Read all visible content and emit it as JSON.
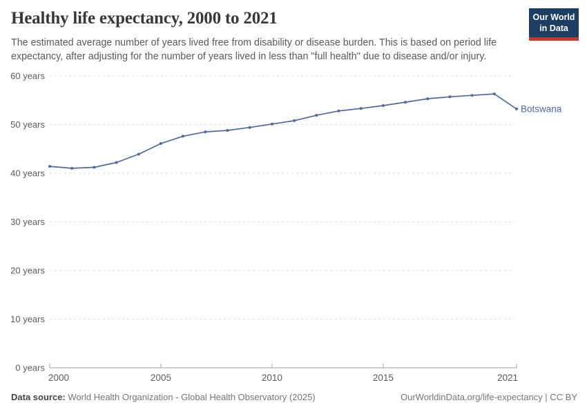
{
  "header": {
    "title": "Healthy life expectancy, 2000 to 2021",
    "subtitle": "The estimated average number of years lived free from disability or disease burden. This is based on period life expectancy, after adjusting for the number of years lived in less than \"full health\" due to disease and/or injury."
  },
  "logo": {
    "line1": "Our World",
    "line2": "in Data",
    "bg_color": "#1d3d63",
    "stripe_color": "#c53a33"
  },
  "chart_data": {
    "type": "line",
    "title": "Healthy life expectancy, 2000 to 2021",
    "x": [
      2000,
      2001,
      2002,
      2003,
      2004,
      2005,
      2006,
      2007,
      2008,
      2009,
      2010,
      2011,
      2012,
      2013,
      2014,
      2015,
      2016,
      2017,
      2018,
      2019,
      2020,
      2021
    ],
    "series": [
      {
        "name": "Botswana",
        "color": "#4a69a5",
        "values": [
          41.4,
          41.0,
          41.2,
          42.2,
          43.9,
          46.1,
          47.6,
          48.5,
          48.8,
          49.4,
          50.1,
          50.8,
          51.9,
          52.8,
          53.3,
          53.9,
          54.6,
          55.3,
          55.7,
          56.0,
          56.3,
          53.2
        ]
      }
    ],
    "xlabel": "",
    "ylabel": "",
    "xlim": [
      2000,
      2021
    ],
    "ylim": [
      0,
      60
    ],
    "x_ticks": [
      2000,
      2005,
      2010,
      2015,
      2021
    ],
    "y_ticks": [
      0,
      10,
      20,
      30,
      40,
      50,
      60
    ],
    "y_tick_suffix": " years",
    "grid": "horizontal-dashed",
    "legend_position": "end-of-line-label",
    "grid_color": "#dcdcdc",
    "axis_color": "#a1a1a1",
    "tick_label_color": "#5b5b5b"
  },
  "footer": {
    "datasource_label": "Data source:",
    "datasource_value": "World Health Organization - Global Health Observatory (2025)",
    "credit": "OurWorldinData.org/life-expectancy | CC BY"
  }
}
